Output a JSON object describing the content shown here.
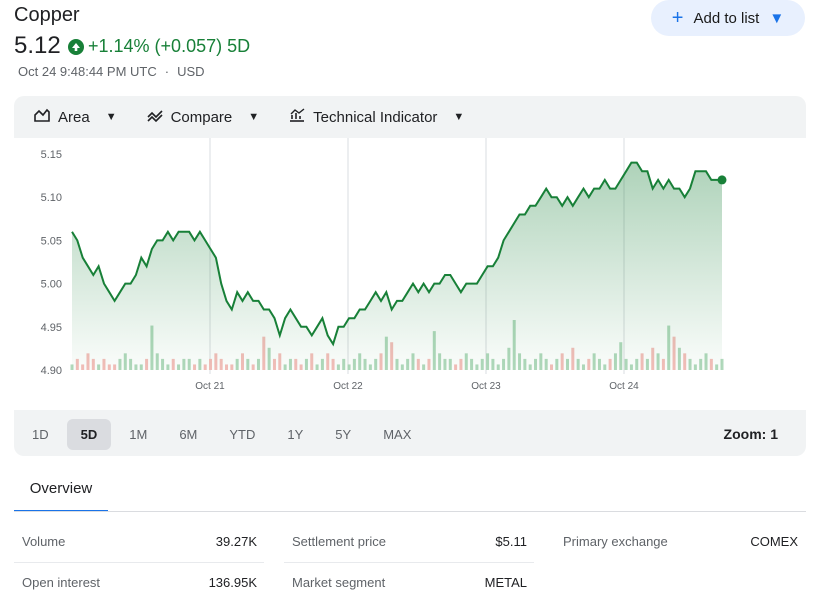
{
  "header": {
    "title": "Copper",
    "price": "5.12",
    "change": "+1.14% (+0.057) 5D",
    "timestamp": "Oct 24 9:48:44 PM UTC",
    "currency": "USD",
    "add_to_list": "Add to list"
  },
  "toolbar": {
    "area": "Area",
    "compare": "Compare",
    "indicator": "Technical Indicator"
  },
  "ranges": [
    "1D",
    "5D",
    "1M",
    "6M",
    "YTD",
    "1Y",
    "5Y",
    "MAX"
  ],
  "active_range": "5D",
  "zoom": "Zoom: 1",
  "tabs": {
    "overview": "Overview"
  },
  "stats": {
    "volume_label": "Volume",
    "volume": "39.27K",
    "settlement_label": "Settlement price",
    "settlement": "$5.11",
    "exchange_label": "Primary exchange",
    "exchange": "COMEX",
    "oi_label": "Open interest",
    "oi": "136.95K",
    "segment_label": "Market segment",
    "segment": "METAL"
  },
  "colors": {
    "up": "#188038",
    "accent": "#1a73e8",
    "volume_up": "#a8d5b5",
    "volume_down": "#f4b7b2"
  },
  "chart_data": {
    "type": "area",
    "ylim": [
      4.9,
      5.15
    ],
    "yticks": [
      "5.15",
      "5.10",
      "5.05",
      "5.00",
      "4.95",
      "4.90"
    ],
    "xticks": [
      "Oct 21",
      "Oct 22",
      "Oct 23",
      "Oct 24"
    ],
    "series": [
      {
        "values": [
          5.06,
          5.05,
          5.03,
          5.02,
          5.01,
          5.02,
          5.0,
          4.99,
          4.98,
          4.99,
          5.0,
          5.0,
          5.01,
          5.03,
          5.02,
          5.04,
          5.05,
          5.05,
          5.06,
          5.05,
          5.06,
          5.06,
          5.06,
          5.05,
          5.06,
          5.05,
          5.04,
          5.03,
          5.0,
          4.98,
          4.97,
          4.99,
          4.98,
          4.99,
          4.98,
          4.98,
          4.97,
          4.97,
          4.96,
          4.94,
          4.96,
          4.97,
          4.96,
          4.95,
          4.95,
          4.94,
          4.95,
          4.96,
          4.94,
          4.93,
          4.95,
          4.95,
          4.96,
          4.96,
          4.97,
          4.97,
          4.98,
          4.99,
          4.98,
          4.99,
          4.97,
          4.98,
          4.98,
          4.99,
          5.0,
          4.99,
          5.0,
          4.99,
          5.0,
          5.0,
          5.01,
          5.01,
          5.0,
          4.99,
          5.0,
          5.0,
          5.0,
          5.01,
          5.02,
          5.02,
          5.03,
          5.05,
          5.06,
          5.07,
          5.08,
          5.08,
          5.09,
          5.09,
          5.1,
          5.11,
          5.1,
          5.1,
          5.09,
          5.1,
          5.09,
          5.1,
          5.11,
          5.1,
          5.11,
          5.11,
          5.12,
          5.11,
          5.11,
          5.12,
          5.13,
          5.14,
          5.14,
          5.13,
          5.13,
          5.11,
          5.12,
          5.11,
          5.12,
          5.11,
          5.11,
          5.1,
          5.11,
          5.13,
          5.13,
          5.13,
          5.12,
          5.12,
          5.12
        ]
      }
    ],
    "volume": [
      1,
      2,
      1,
      3,
      2,
      1,
      2,
      1,
      1,
      2,
      3,
      2,
      1,
      1,
      2,
      8,
      3,
      2,
      1,
      2,
      1,
      2,
      2,
      1,
      2,
      1,
      2,
      3,
      2,
      1,
      1,
      2,
      3,
      2,
      1,
      2,
      6,
      4,
      2,
      3,
      1,
      2,
      2,
      1,
      2,
      3,
      1,
      2,
      3,
      2,
      1,
      2,
      1,
      2,
      3,
      2,
      1,
      2,
      3,
      6,
      5,
      2,
      1,
      2,
      3,
      2,
      1,
      2,
      7,
      3,
      2,
      2,
      1,
      2,
      3,
      2,
      1,
      2,
      3,
      2,
      1,
      2,
      4,
      9,
      3,
      2,
      1,
      2,
      3,
      2,
      1,
      2,
      3,
      2,
      4,
      2,
      1,
      2,
      3,
      2,
      1,
      2,
      3,
      5,
      2,
      1,
      2,
      3,
      2,
      4,
      3,
      2,
      8,
      6,
      4,
      3,
      2,
      1,
      2,
      3,
      2,
      1,
      2
    ]
  }
}
